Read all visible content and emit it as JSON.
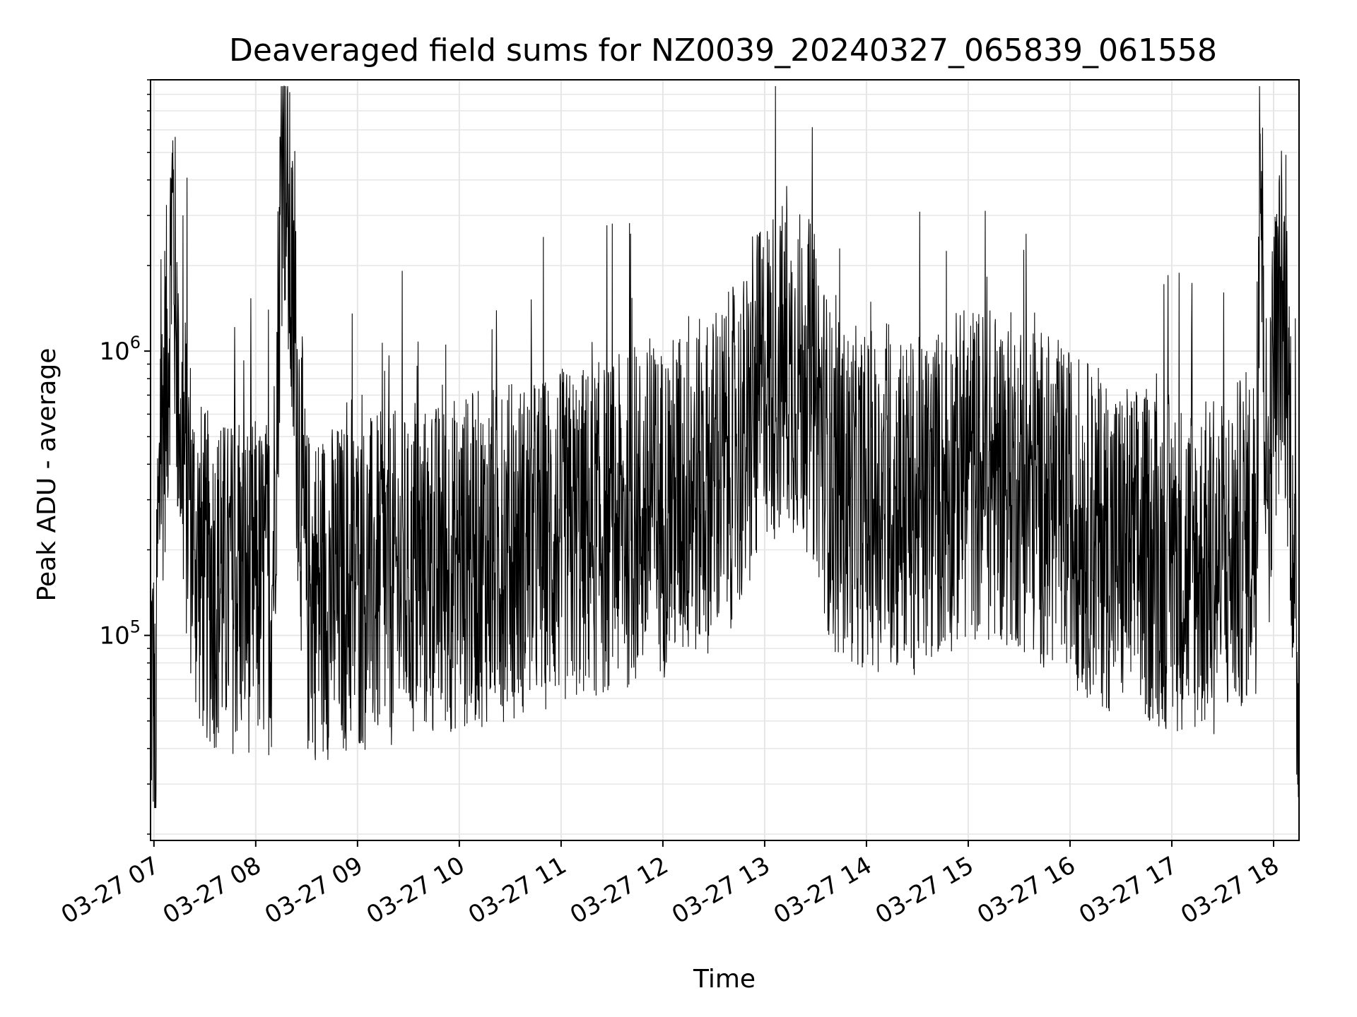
{
  "chart_data": {
    "type": "line",
    "title": "Deaveraged field sums for NZ0039_20240327_065839_061558",
    "xlabel": "Time",
    "ylabel": "Peak ADU - average",
    "x_ticks": [
      "03-27 07",
      "03-27 08",
      "03-27 09",
      "03-27 10",
      "03-27 11",
      "03-27 12",
      "03-27 13",
      "03-27 14",
      "03-27 15",
      "03-27 16",
      "03-27 17",
      "03-27 18"
    ],
    "y_ticks": [
      {
        "base": "10",
        "exp": "5",
        "value": 100000
      },
      {
        "base": "10",
        "exp": "6",
        "value": 1000000
      }
    ],
    "x_range": [
      "2024-03-27 06:58",
      "2024-03-27 18:15"
    ],
    "ylim": [
      19000,
      9000000
    ],
    "yscale": "log",
    "grid": true,
    "line_color": "#000000",
    "grid_color": "#e6e6e6",
    "series": [
      {
        "points": [
          [
            "2024-03-27 06:58",
            90000
          ],
          [
            "2024-03-27 07:00",
            52000
          ],
          [
            "2024-03-27 07:01",
            26000
          ],
          [
            "2024-03-27 07:02",
            160000
          ],
          [
            "2024-03-27 07:04",
            400000
          ],
          [
            "2024-03-27 07:06",
            700000
          ],
          [
            "2024-03-27 07:08",
            900000
          ],
          [
            "2024-03-27 07:10",
            2000000
          ],
          [
            "2024-03-27 07:11",
            3600000
          ],
          [
            "2024-03-27 07:13",
            1200000
          ],
          [
            "2024-03-27 07:15",
            600000
          ],
          [
            "2024-03-27 07:18",
            400000
          ],
          [
            "2024-03-27 07:21",
            300000
          ],
          [
            "2024-03-27 07:24",
            200000
          ],
          [
            "2024-03-27 07:30",
            160000
          ],
          [
            "2024-03-27 07:40",
            150000
          ],
          [
            "2024-03-27 08:00",
            150000
          ],
          [
            "2024-03-27 08:10",
            150000
          ],
          [
            "2024-03-27 08:16",
            6600000
          ],
          [
            "2024-03-27 08:30",
            140000
          ],
          [
            "2024-03-27 09:00",
            150000
          ],
          [
            "2024-03-27 09:30",
            160000
          ],
          [
            "2024-03-27 10:00",
            180000
          ],
          [
            "2024-03-27 10:30",
            200000
          ],
          [
            "2024-03-27 11:00",
            220000
          ],
          [
            "2024-03-27 11:30",
            240000
          ],
          [
            "2024-03-27 12:00",
            280000
          ],
          [
            "2024-03-27 12:30",
            350000
          ],
          [
            "2024-03-27 12:50",
            500000
          ],
          [
            "2024-03-27 13:00",
            800000
          ],
          [
            "2024-03-27 13:15",
            900000
          ],
          [
            "2024-03-27 13:30",
            700000
          ],
          [
            "2024-03-27 13:40",
            330000
          ],
          [
            "2024-03-27 14:00",
            300000
          ],
          [
            "2024-03-27 14:30",
            280000
          ],
          [
            "2024-03-27 15:00",
            380000
          ],
          [
            "2024-03-27 15:30",
            350000
          ],
          [
            "2024-03-27 16:00",
            260000
          ],
          [
            "2024-03-27 16:30",
            200000
          ],
          [
            "2024-03-27 17:00",
            180000
          ],
          [
            "2024-03-27 17:30",
            170000
          ],
          [
            "2024-03-27 17:50",
            250000
          ],
          [
            "2024-03-27 17:52",
            5800000
          ],
          [
            "2024-03-27 17:56",
            300000
          ],
          [
            "2024-03-27 18:00",
            800000
          ],
          [
            "2024-03-27 18:05",
            1500000
          ],
          [
            "2024-03-27 18:09",
            700000
          ],
          [
            "2024-03-27 18:12",
            180000
          ],
          [
            "2024-03-27 18:14",
            65000
          ],
          [
            "2024-03-27 18:15",
            80000
          ]
        ]
      }
    ]
  }
}
